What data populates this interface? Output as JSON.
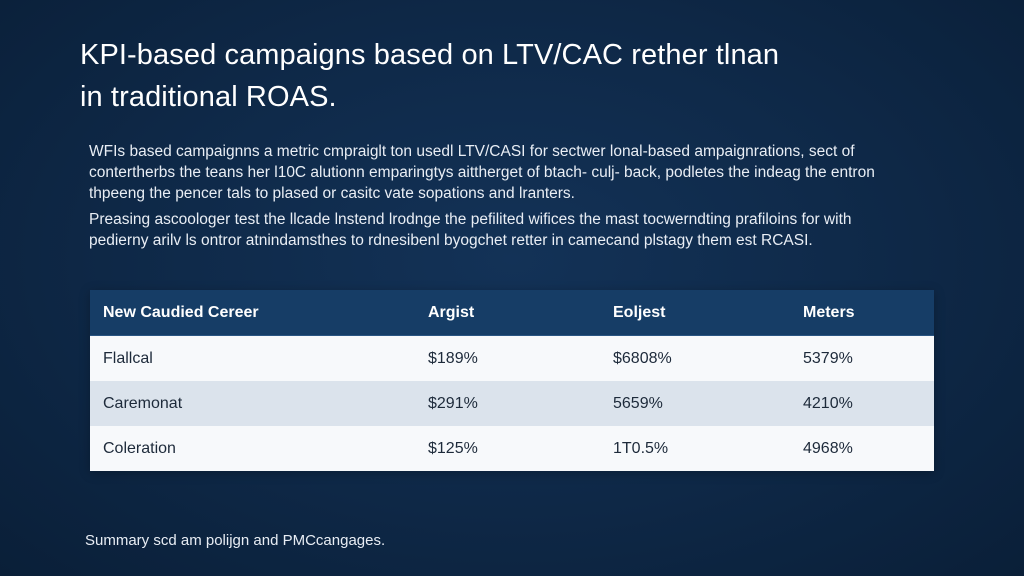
{
  "slide": {
    "title": "KPI-based campaigns based on LTV/CAC rether tlnan\nin traditional ROAS.",
    "paragraphs": [
      "WFIs based campaignns a metric cmpraiglt ton usedl LTV/CASI for sectwer lonal-based ampaignrations, sect of\ncontertherbs the teans her l10C alutionn emparingtys aittherg​et of btach- culj- back, podletes the indeag the entron\nthpeeng the pencer tals to plased or casitc vate sopations and lranters.",
      "Preasing ascoologer test the llcade lnstend lrodnge the pefilited wifices the mast tocwerndting prafiloins for with\npedierny arilv ls ontror atnindamsthes to rdnesibenl byogchet retter in camecand plstagy them est RCASI."
    ],
    "caption": "Summary scd am polijgn and PMCcangages."
  },
  "table": {
    "headers": [
      "New Caudied Cereer",
      "Argist",
      "Eoljest",
      "Meters"
    ],
    "rows": [
      [
        "Flallcal",
        "$189%",
        "$6808%",
        "5379%"
      ],
      [
        "Caremonat",
        "$291%",
        "5659%",
        "4210%"
      ],
      [
        "Coleration",
        "$125%",
        "1T0.5%",
        "4968%"
      ]
    ]
  },
  "colors": {
    "background": "#0f2a4a",
    "table_header": "#163d66",
    "row_light": "#f7f9fb",
    "row_shaded": "#dbe3ec"
  }
}
